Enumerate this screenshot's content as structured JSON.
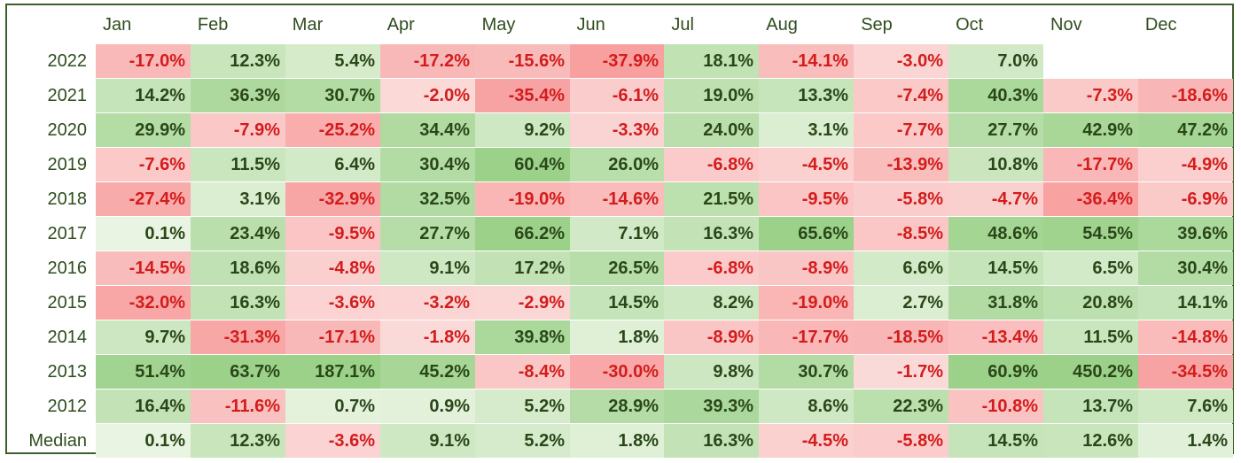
{
  "chart_data": {
    "type": "heatmap",
    "columns": [
      "Jan",
      "Feb",
      "Mar",
      "Apr",
      "May",
      "Jun",
      "Jul",
      "Aug",
      "Sep",
      "Oct",
      "Nov",
      "Dec"
    ],
    "rows": [
      {
        "label": "2022",
        "values": [
          "-17.0%",
          "12.3%",
          "5.4%",
          "-17.2%",
          "-15.6%",
          "-37.9%",
          "18.1%",
          "-14.1%",
          "-3.0%",
          "7.0%",
          "",
          ""
        ]
      },
      {
        "label": "2021",
        "values": [
          "14.2%",
          "36.3%",
          "30.7%",
          "-2.0%",
          "-35.4%",
          "-6.1%",
          "19.0%",
          "13.3%",
          "-7.4%",
          "40.3%",
          "-7.3%",
          "-18.6%"
        ]
      },
      {
        "label": "2020",
        "values": [
          "29.9%",
          "-7.9%",
          "-25.2%",
          "34.4%",
          "9.2%",
          "-3.3%",
          "24.0%",
          "3.1%",
          "-7.7%",
          "27.7%",
          "42.9%",
          "47.2%"
        ]
      },
      {
        "label": "2019",
        "values": [
          "-7.6%",
          "11.5%",
          "6.4%",
          "30.4%",
          "60.4%",
          "26.0%",
          "-6.8%",
          "-4.5%",
          "-13.9%",
          "10.8%",
          "-17.7%",
          "-4.9%"
        ]
      },
      {
        "label": "2018",
        "values": [
          "-27.4%",
          "3.1%",
          "-32.9%",
          "32.5%",
          "-19.0%",
          "-14.6%",
          "21.5%",
          "-9.5%",
          "-5.8%",
          "-4.7%",
          "-36.4%",
          "-6.9%"
        ]
      },
      {
        "label": "2017",
        "values": [
          "0.1%",
          "23.4%",
          "-9.5%",
          "27.7%",
          "66.2%",
          "7.1%",
          "16.3%",
          "65.6%",
          "-8.5%",
          "48.6%",
          "54.5%",
          "39.6%"
        ]
      },
      {
        "label": "2016",
        "values": [
          "-14.5%",
          "18.6%",
          "-4.8%",
          "9.1%",
          "17.2%",
          "26.5%",
          "-6.8%",
          "-8.9%",
          "6.6%",
          "14.5%",
          "6.5%",
          "30.4%"
        ]
      },
      {
        "label": "2015",
        "values": [
          "-32.0%",
          "16.3%",
          "-3.6%",
          "-3.2%",
          "-2.9%",
          "14.5%",
          "8.2%",
          "-19.0%",
          "2.7%",
          "31.8%",
          "20.8%",
          "14.1%"
        ]
      },
      {
        "label": "2014",
        "values": [
          "9.7%",
          "-31.3%",
          "-17.1%",
          "-1.8%",
          "39.8%",
          "1.8%",
          "-8.9%",
          "-17.7%",
          "-18.5%",
          "-13.4%",
          "11.5%",
          "-14.8%"
        ]
      },
      {
        "label": "2013",
        "values": [
          "51.4%",
          "63.7%",
          "187.1%",
          "45.2%",
          "-8.4%",
          "-30.0%",
          "9.8%",
          "30.7%",
          "-1.7%",
          "60.9%",
          "450.2%",
          "-34.5%"
        ]
      },
      {
        "label": "2012",
        "values": [
          "16.4%",
          "-11.6%",
          "0.7%",
          "0.9%",
          "5.2%",
          "28.9%",
          "39.3%",
          "8.6%",
          "22.3%",
          "-10.8%",
          "13.7%",
          "7.6%"
        ]
      },
      {
        "label": "Median",
        "values": [
          "0.1%",
          "12.3%",
          "-3.6%",
          "9.1%",
          "5.2%",
          "1.8%",
          "16.3%",
          "-4.5%",
          "-5.8%",
          "14.5%",
          "12.6%",
          "1.4%"
        ]
      }
    ],
    "colors": {
      "positive_text": "#2a4719",
      "negative_text": "#d31c1c",
      "positive_light": "#edf6e6",
      "positive_strong": "#9cd18a",
      "negative_light": "#fbeae8",
      "negative_strong": "#f8a0a0",
      "axis_text": "#2f4d1e",
      "border": "#3c5e2a"
    }
  }
}
